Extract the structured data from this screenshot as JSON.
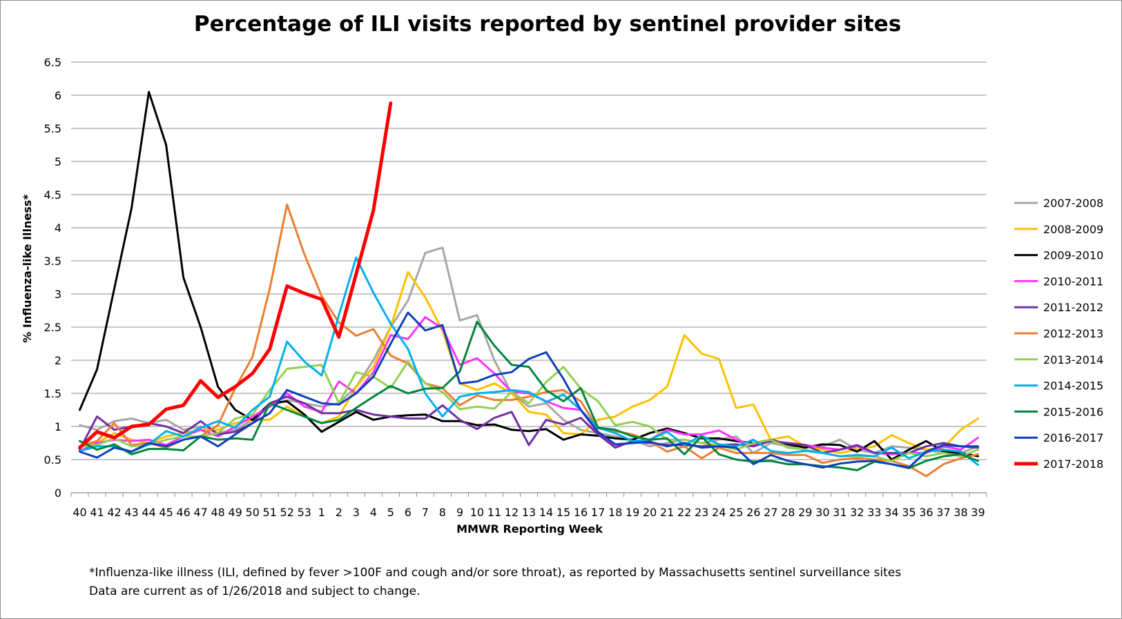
{
  "footnote": {
    "line1": "*Influenza-like illness (ILI, defined by fever >100F and cough and/or sore throat), as reported by Massachusetts sentinel surveillance sites",
    "line2": "Data are current as of 1/26/2018 and subject to change."
  },
  "chart_data": {
    "type": "line",
    "title": "Percentage of ILI visits reported by sentinel provider sites",
    "xlabel": "MMWR Reporting Week",
    "ylabel": "% Influenza-like Illness*",
    "ylim": [
      0,
      6.5
    ],
    "yticks": [
      "0",
      "0.5",
      "1",
      "1.5",
      "2",
      "2.5",
      "3",
      "3.5",
      "4",
      "4.5",
      "5",
      "5.5",
      "6",
      "6.5"
    ],
    "grid": true,
    "legend_position": "right",
    "categories": [
      "40",
      "41",
      "42",
      "43",
      "44",
      "45",
      "46",
      "47",
      "48",
      "49",
      "50",
      "51",
      "52",
      "53",
      "1",
      "2",
      "3",
      "4",
      "5",
      "6",
      "7",
      "8",
      "9",
      "10",
      "11",
      "12",
      "13",
      "14",
      "15",
      "16",
      "17",
      "18",
      "19",
      "20",
      "21",
      "22",
      "23",
      "24",
      "25",
      "26",
      "27",
      "28",
      "29",
      "30",
      "31",
      "32",
      "33",
      "34",
      "35",
      "36",
      "37",
      "38",
      "39"
    ],
    "series": [
      {
        "name": "2007-2008",
        "color": "#a6a6a6",
        "width": 3,
        "values": [
          1.02,
          0.95,
          1.08,
          1.12,
          1.05,
          1.1,
          0.95,
          1.0,
          0.9,
          0.95,
          1.1,
          1.3,
          1.4,
          1.35,
          1.3,
          1.35,
          1.6,
          2.0,
          2.5,
          2.9,
          3.62,
          3.7,
          2.6,
          2.68,
          2.0,
          1.5,
          1.3,
          1.35,
          1.1,
          0.95,
          0.9,
          0.85,
          0.8,
          0.7,
          0.75,
          0.8,
          0.75,
          0.8,
          0.85,
          0.6,
          0.75,
          0.7,
          0.7,
          0.7,
          0.8,
          0.65,
          0.6,
          0.7,
          0.68,
          0.65,
          0.6,
          0.6,
          0.7
        ]
      },
      {
        "name": "2008-2009",
        "color": "#ffc000",
        "width": 3,
        "values": [
          0.7,
          0.75,
          0.9,
          0.8,
          0.75,
          0.85,
          0.9,
          0.95,
          0.95,
          1.05,
          1.1,
          1.1,
          1.3,
          1.15,
          1.05,
          1.15,
          1.6,
          1.9,
          2.5,
          3.33,
          2.95,
          2.45,
          1.65,
          1.55,
          1.65,
          1.5,
          1.22,
          1.18,
          0.9,
          0.88,
          1.1,
          1.15,
          1.3,
          1.4,
          1.6,
          2.38,
          2.1,
          2.02,
          1.28,
          1.33,
          0.8,
          0.85,
          0.7,
          0.65,
          0.6,
          0.65,
          0.7,
          0.87,
          0.75,
          0.65,
          0.68,
          0.95,
          1.12
        ]
      },
      {
        "name": "2009-2010",
        "color": "#000000",
        "width": 3,
        "values": [
          1.25,
          1.86,
          3.08,
          4.3,
          6.05,
          5.25,
          3.25,
          2.5,
          1.6,
          1.25,
          1.1,
          1.35,
          1.38,
          1.18,
          0.92,
          1.07,
          1.22,
          1.1,
          1.15,
          1.17,
          1.18,
          1.08,
          1.08,
          1.02,
          1.03,
          0.95,
          0.93,
          0.96,
          0.8,
          0.88,
          0.86,
          0.82,
          0.8,
          0.9,
          0.97,
          0.9,
          0.82,
          0.82,
          0.78,
          0.75,
          0.8,
          0.73,
          0.68,
          0.73,
          0.72,
          0.62,
          0.78,
          0.5,
          0.65,
          0.78,
          0.62,
          0.6,
          0.55
        ]
      },
      {
        "name": "2010-2011",
        "color": "#ff33ff",
        "width": 3,
        "values": [
          0.63,
          0.75,
          0.8,
          0.78,
          0.8,
          0.72,
          0.85,
          0.95,
          0.85,
          1.0,
          1.15,
          1.3,
          1.5,
          1.3,
          1.22,
          1.68,
          1.5,
          1.82,
          2.38,
          2.32,
          2.65,
          2.48,
          1.93,
          2.03,
          1.8,
          1.52,
          1.5,
          1.38,
          1.28,
          1.25,
          0.9,
          0.72,
          0.75,
          0.8,
          0.95,
          0.88,
          0.88,
          0.94,
          0.8,
          0.72,
          0.78,
          0.75,
          0.72,
          0.68,
          0.65,
          0.7,
          0.6,
          0.58,
          0.6,
          0.6,
          0.7,
          0.65,
          0.83
        ]
      },
      {
        "name": "2011-2012",
        "color": "#7030a0",
        "width": 3,
        "values": [
          0.65,
          1.15,
          0.95,
          1.0,
          1.05,
          1.0,
          0.9,
          1.08,
          0.88,
          0.92,
          1.05,
          1.35,
          1.45,
          1.35,
          1.2,
          1.2,
          1.25,
          1.18,
          1.15,
          1.12,
          1.12,
          1.32,
          1.1,
          0.96,
          1.13,
          1.22,
          0.72,
          1.1,
          1.03,
          1.13,
          0.88,
          0.68,
          0.78,
          0.75,
          0.72,
          0.72,
          0.7,
          0.72,
          0.73,
          0.7,
          0.78,
          0.75,
          0.72,
          0.6,
          0.65,
          0.72,
          0.6,
          0.6,
          0.6,
          0.7,
          0.75,
          0.7,
          0.68
        ]
      },
      {
        "name": "2012-2013",
        "color": "#ed7d31",
        "width": 3,
        "values": [
          0.7,
          0.78,
          1.05,
          0.72,
          0.75,
          0.68,
          0.8,
          0.85,
          1.02,
          1.58,
          2.05,
          3.08,
          4.35,
          3.6,
          2.97,
          2.57,
          2.37,
          2.47,
          2.07,
          1.95,
          1.65,
          1.58,
          1.32,
          1.47,
          1.4,
          1.4,
          1.45,
          1.52,
          1.55,
          1.38,
          0.97,
          0.93,
          0.88,
          0.78,
          0.62,
          0.7,
          0.52,
          0.68,
          0.6,
          0.6,
          0.6,
          0.57,
          0.57,
          0.45,
          0.5,
          0.52,
          0.5,
          0.48,
          0.4,
          0.25,
          0.43,
          0.52,
          0.58
        ]
      },
      {
        "name": "2013-2014",
        "color": "#92d050",
        "width": 3,
        "values": [
          0.7,
          0.72,
          0.82,
          0.7,
          0.72,
          0.8,
          0.85,
          0.85,
          0.9,
          1.12,
          1.18,
          1.55,
          1.87,
          1.9,
          1.93,
          1.35,
          1.82,
          1.75,
          1.58,
          1.98,
          1.65,
          1.52,
          1.26,
          1.3,
          1.27,
          1.52,
          1.35,
          1.67,
          1.9,
          1.57,
          1.38,
          1.02,
          1.07,
          1.0,
          0.8,
          0.8,
          0.75,
          0.72,
          0.65,
          0.75,
          0.8,
          0.68,
          0.65,
          0.6,
          0.55,
          0.55,
          0.55,
          0.48,
          0.6,
          0.55,
          0.6,
          0.55,
          0.65
        ]
      },
      {
        "name": "2014-2015",
        "color": "#00b0f0",
        "width": 3,
        "values": [
          0.63,
          0.7,
          0.7,
          0.62,
          0.73,
          0.93,
          0.85,
          0.98,
          1.08,
          0.98,
          1.25,
          1.45,
          2.28,
          1.98,
          1.77,
          2.68,
          3.55,
          3.02,
          2.55,
          2.17,
          1.5,
          1.15,
          1.45,
          1.5,
          1.52,
          1.55,
          1.52,
          1.37,
          1.48,
          1.25,
          0.98,
          0.9,
          0.78,
          0.8,
          0.92,
          0.72,
          0.86,
          0.73,
          0.7,
          0.8,
          0.63,
          0.6,
          0.63,
          0.6,
          0.55,
          0.57,
          0.55,
          0.68,
          0.52,
          0.62,
          0.65,
          0.62,
          0.42
        ]
      },
      {
        "name": "2015-2016",
        "color": "#00853e",
        "width": 3,
        "values": [
          0.78,
          0.65,
          0.73,
          0.58,
          0.66,
          0.66,
          0.64,
          0.85,
          0.8,
          0.82,
          0.8,
          1.35,
          1.25,
          1.15,
          1.05,
          1.1,
          1.28,
          1.45,
          1.61,
          1.5,
          1.57,
          1.58,
          1.83,
          2.58,
          2.22,
          1.93,
          1.9,
          1.55,
          1.38,
          1.58,
          0.98,
          0.95,
          0.85,
          0.8,
          0.82,
          0.58,
          0.85,
          0.58,
          0.5,
          0.47,
          0.48,
          0.43,
          0.43,
          0.4,
          0.38,
          0.34,
          0.47,
          0.43,
          0.37,
          0.48,
          0.55,
          0.58,
          0.48
        ]
      },
      {
        "name": "2016-2017",
        "color": "#0e3fbb",
        "width": 3,
        "values": [
          0.62,
          0.53,
          0.68,
          0.62,
          0.75,
          0.7,
          0.8,
          0.85,
          0.7,
          0.88,
          1.05,
          1.2,
          1.55,
          1.45,
          1.35,
          1.33,
          1.5,
          1.75,
          2.25,
          2.72,
          2.45,
          2.53,
          1.65,
          1.68,
          1.78,
          1.82,
          2.02,
          2.12,
          1.72,
          1.25,
          0.92,
          0.73,
          0.75,
          0.77,
          0.7,
          0.75,
          0.68,
          0.7,
          0.68,
          0.43,
          0.57,
          0.48,
          0.43,
          0.38,
          0.44,
          0.47,
          0.48,
          0.43,
          0.38,
          0.62,
          0.72,
          0.7,
          0.7
        ]
      },
      {
        "name": "2017-2018",
        "color": "#ff0000",
        "width": 5,
        "values": [
          0.68,
          0.92,
          0.83,
          1.0,
          1.03,
          1.26,
          1.32,
          1.69,
          1.44,
          1.6,
          1.8,
          2.17,
          3.12,
          3.01,
          2.92,
          2.35,
          3.3,
          4.26,
          5.88,
          null,
          null,
          null,
          null,
          null,
          null,
          null,
          null,
          null,
          null,
          null,
          null,
          null,
          null,
          null,
          null,
          null,
          null,
          null,
          null,
          null,
          null,
          null,
          null,
          null,
          null,
          null,
          null,
          null,
          null,
          null,
          null,
          null,
          null
        ]
      }
    ]
  }
}
